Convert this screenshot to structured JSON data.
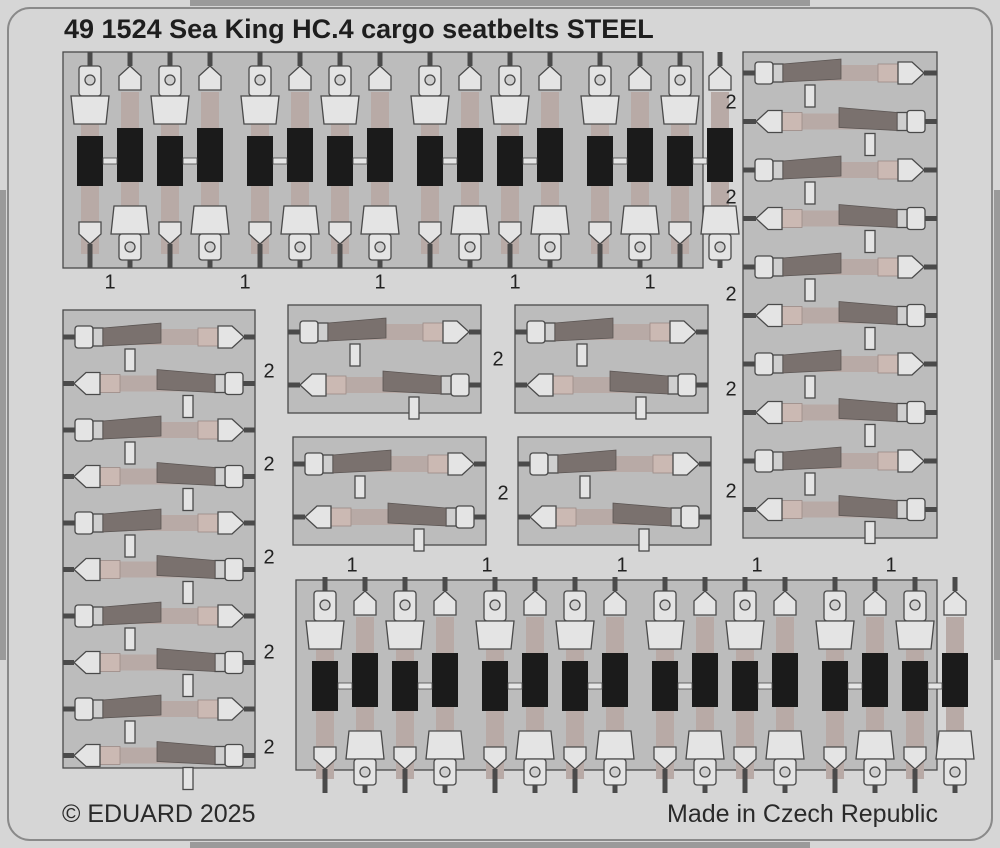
{
  "title": "49 1524 Sea King HC.4 cargo seatbelts STEEL",
  "footer": {
    "left": "© EDUARD 2025",
    "right": "Made in Czech Republic"
  },
  "part_labels": {
    "top_panel": [
      "1",
      "1",
      "1",
      "1",
      "1"
    ],
    "right_panel": [
      "2",
      "2",
      "2",
      "2",
      "2"
    ],
    "left_panel": [
      "2",
      "2",
      "2",
      "2",
      "2"
    ],
    "small_panels": [
      "2",
      "2"
    ],
    "bottom_panel": [
      "1",
      "1",
      "1",
      "1",
      "1"
    ]
  },
  "colors": {
    "background": "#d6d6d6",
    "fret": "#bcbcbc",
    "outline": "#4a4a4a",
    "belt": "#b8aaa6",
    "buckle_dark": "#1b1b1b",
    "tongue": "#7a716e",
    "metal": "#e4e4e4"
  }
}
